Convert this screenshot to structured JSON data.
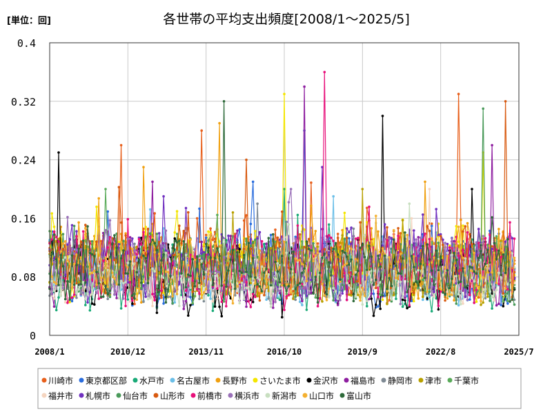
{
  "chart_data": {
    "type": "line",
    "title": "各世帯の平均支出頻度[2008/1～2025/5]",
    "unit_label": "[単位：回]",
    "xlabel": "",
    "ylabel": "",
    "x_range": [
      "2008/1",
      "2025/7"
    ],
    "ylim": [
      0,
      0.4
    ],
    "y_ticks": [
      "0",
      "0.08",
      "0.16",
      "0.24",
      "0.32",
      "0.4"
    ],
    "x_ticks": [
      "2008/1",
      "2010/12",
      "2013/11",
      "2016/10",
      "2019/9",
      "2022/8",
      "2025/7"
    ],
    "grid": "horizontal and vertical",
    "legend_position": "bottom",
    "series": [
      {
        "name": "川崎市",
        "color": "#e8601c",
        "base": 0.1,
        "amp": 0.045,
        "peaks": [
          [
            38,
            0.26
          ],
          [
            216,
            0.33
          ],
          [
            80,
            0.28
          ]
        ]
      },
      {
        "name": "東京都区部",
        "color": "#2a6ddd",
        "base": 0.09,
        "amp": 0.04,
        "peaks": [
          [
            134,
            0.28
          ],
          [
            107,
            0.21
          ]
        ]
      },
      {
        "name": "水戸市",
        "color": "#1aaa78",
        "base": 0.08,
        "amp": 0.035,
        "peaks": [
          [
            124,
            0.2
          ]
        ]
      },
      {
        "name": "名古屋市",
        "color": "#6bbfe8",
        "base": 0.09,
        "amp": 0.035,
        "peaks": [
          [
            150,
            0.19
          ]
        ]
      },
      {
        "name": "長野市",
        "color": "#f0a010",
        "base": 0.1,
        "amp": 0.04,
        "peaks": [
          [
            50,
            0.23
          ],
          [
            90,
            0.29
          ],
          [
            198,
            0.21
          ]
        ]
      },
      {
        "name": "さいたま市",
        "color": "#f4e600",
        "base": 0.1,
        "amp": 0.04,
        "peaks": [
          [
            124,
            0.33
          ],
          [
            228,
            0.25
          ]
        ]
      },
      {
        "name": "金沢市",
        "color": "#000000",
        "base": 0.08,
        "amp": 0.04,
        "peaks": [
          [
            5,
            0.25
          ],
          [
            176,
            0.3
          ],
          [
            223,
            0.2
          ]
        ]
      },
      {
        "name": "福島市",
        "color": "#8e1ea0",
        "base": 0.09,
        "amp": 0.04,
        "peaks": [
          [
            134,
            0.34
          ],
          [
            54,
            0.21
          ],
          [
            233,
            0.26
          ]
        ]
      },
      {
        "name": "静岡市",
        "color": "#7f8a94",
        "base": 0.08,
        "amp": 0.03,
        "peaks": [
          [
            110,
            0.18
          ]
        ]
      },
      {
        "name": "津市",
        "color": "#b8a000",
        "base": 0.09,
        "amp": 0.035,
        "peaks": [
          [
            165,
            0.2
          ]
        ]
      },
      {
        "name": "千葉市",
        "color": "#5aab5a",
        "base": 0.09,
        "amp": 0.035,
        "peaks": [
          [
            30,
            0.2
          ]
        ]
      },
      {
        "name": "福井市",
        "color": "#f5d5c0",
        "base": 0.08,
        "amp": 0.03,
        "peaks": [
          [
            200,
            0.2
          ]
        ]
      },
      {
        "name": "札幌市",
        "color": "#7030c0",
        "base": 0.1,
        "amp": 0.04,
        "peaks": [
          [
            144,
            0.23
          ],
          [
            60,
            0.19
          ]
        ]
      },
      {
        "name": "仙台市",
        "color": "#4a9a5a",
        "base": 0.09,
        "amp": 0.035,
        "peaks": [
          [
            229,
            0.31
          ]
        ]
      },
      {
        "name": "山形市",
        "color": "#d85a10",
        "base": 0.1,
        "amp": 0.04,
        "peaks": [
          [
            104,
            0.24
          ],
          [
            240,
            0.32
          ]
        ]
      },
      {
        "name": "前橋市",
        "color": "#e8107a",
        "base": 0.09,
        "amp": 0.04,
        "peaks": [
          [
            145,
            0.36
          ]
        ]
      },
      {
        "name": "横浜市",
        "color": "#9a70b8",
        "base": 0.09,
        "amp": 0.035,
        "peaks": [
          [
            127,
            0.2
          ]
        ]
      },
      {
        "name": "新潟市",
        "color": "#c8dfc0",
        "base": 0.08,
        "amp": 0.03,
        "peaks": [
          [
            190,
            0.18
          ]
        ]
      },
      {
        "name": "山口市",
        "color": "#f4b030",
        "base": 0.09,
        "amp": 0.035,
        "peaks": [
          [
            26,
            0.16
          ]
        ]
      },
      {
        "name": "富山市",
        "color": "#2e6a3a",
        "base": 0.09,
        "amp": 0.035,
        "peaks": [
          [
            92,
            0.32
          ]
        ]
      }
    ]
  }
}
